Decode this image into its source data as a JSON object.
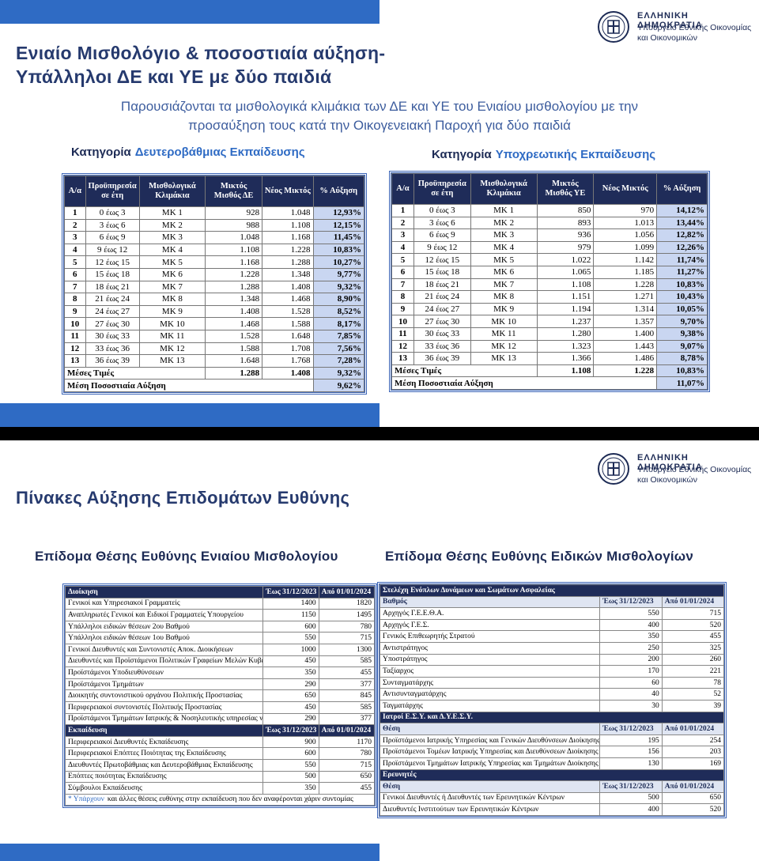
{
  "logo": {
    "line1": "ΕΛΛΗΝΙΚΗ ΔΗΜΟΚΡΑΤΙΑ",
    "line2": "Υπουργείο Εθνικής Οικονομίας",
    "line3": "και Οικονομικών"
  },
  "slide1": {
    "title": [
      "Ενιαίο Μισθολόγιο & ποσοστιαία αύξηση-",
      "Υπάλληλοι ΔΕ και ΥΕ με δύο παιδιά"
    ],
    "subtitle": [
      "Παρουσιάζονται τα μισθολογικά κλιμάκια των ΔΕ και ΥΕ του Ενιαίου μισθολογίου με την",
      "προσαύξηση τους κατά την Οικογενειακή Παροχή για δύο παιδιά"
    ],
    "tables": [
      {
        "heading": {
          "prefix": "Κατηγορία",
          "highlight": "Δευτεροβάθμιας Εκπαίδευσης"
        },
        "headers": [
          "Α/α",
          "Προϋπηρεσία σε έτη",
          "Μισθολογικά Κλιμάκια",
          "Μικτός Μισθός ΔΕ",
          "Νέος Μικτός",
          "% Αύξηση"
        ],
        "rows": [
          [
            "1",
            "0 έως 3",
            "ΜΚ 1",
            "928",
            "1.048",
            "12,93%"
          ],
          [
            "2",
            "3 έως 6",
            "ΜΚ 2",
            "988",
            "1.108",
            "12,15%"
          ],
          [
            "3",
            "6 έως 9",
            "ΜΚ 3",
            "1.048",
            "1.168",
            "11,45%"
          ],
          [
            "4",
            "9 έως 12",
            "ΜΚ 4",
            "1.108",
            "1.228",
            "10,83%"
          ],
          [
            "5",
            "12 έως 15",
            "ΜΚ 5",
            "1.168",
            "1.288",
            "10,27%"
          ],
          [
            "6",
            "15 έως 18",
            "ΜΚ 6",
            "1.228",
            "1.348",
            "9,77%"
          ],
          [
            "7",
            "18 έως 21",
            "ΜΚ 7",
            "1.288",
            "1.408",
            "9,32%"
          ],
          [
            "8",
            "21 έως 24",
            "ΜΚ 8",
            "1.348",
            "1.468",
            "8,90%"
          ],
          [
            "9",
            "24 έως 27",
            "ΜΚ 9",
            "1.408",
            "1.528",
            "8,52%"
          ],
          [
            "10",
            "27 έως 30",
            "ΜΚ 10",
            "1.468",
            "1.588",
            "8,17%"
          ],
          [
            "11",
            "30 έως 33",
            "ΜΚ 11",
            "1.528",
            "1.648",
            "7,85%"
          ],
          [
            "12",
            "33 έως 36",
            "ΜΚ 12",
            "1.588",
            "1.708",
            "7,56%"
          ],
          [
            "13",
            "36 έως 39",
            "ΜΚ 13",
            "1.648",
            "1.768",
            "7,28%"
          ]
        ],
        "average": [
          "Μέσες Τιμές",
          "1.288",
          "1.408",
          "9,32%"
        ],
        "mean": [
          "Μέση Ποσοστιαία Αύξηση",
          "9,62%"
        ]
      },
      {
        "heading": {
          "prefix": "Κατηγορία",
          "highlight": "Υποχρεωτικής Εκπαίδευσης"
        },
        "headers": [
          "Α/α",
          "Προϋπηρεσία σε έτη",
          "Μισθολογικά Κλιμάκια",
          "Μικτός Μισθός ΥΕ",
          "Νέος Μικτός",
          "% Αύξηση"
        ],
        "rows": [
          [
            "1",
            "0 έως 3",
            "ΜΚ 1",
            "850",
            "970",
            "14,12%"
          ],
          [
            "2",
            "3 έως 6",
            "ΜΚ 2",
            "893",
            "1.013",
            "13,44%"
          ],
          [
            "3",
            "6 έως 9",
            "ΜΚ 3",
            "936",
            "1.056",
            "12,82%"
          ],
          [
            "4",
            "9 έως 12",
            "ΜΚ 4",
            "979",
            "1.099",
            "12,26%"
          ],
          [
            "5",
            "12 έως 15",
            "ΜΚ 5",
            "1.022",
            "1.142",
            "11,74%"
          ],
          [
            "6",
            "15 έως 18",
            "ΜΚ 6",
            "1.065",
            "1.185",
            "11,27%"
          ],
          [
            "7",
            "18 έως 21",
            "ΜΚ 7",
            "1.108",
            "1.228",
            "10,83%"
          ],
          [
            "8",
            "21 έως 24",
            "ΜΚ 8",
            "1.151",
            "1.271",
            "10,43%"
          ],
          [
            "9",
            "24 έως 27",
            "ΜΚ 9",
            "1.194",
            "1.314",
            "10,05%"
          ],
          [
            "10",
            "27 έως 30",
            "ΜΚ 10",
            "1.237",
            "1.357",
            "9,70%"
          ],
          [
            "11",
            "30 έως 33",
            "ΜΚ 11",
            "1.280",
            "1.400",
            "9,38%"
          ],
          [
            "12",
            "33 έως 36",
            "ΜΚ 12",
            "1.323",
            "1.443",
            "9,07%"
          ],
          [
            "13",
            "36 έως 39",
            "ΜΚ 13",
            "1.366",
            "1.486",
            "8,78%"
          ]
        ],
        "average": [
          "Μέσες Τιμές",
          "1.108",
          "1.228",
          "10,83%"
        ],
        "mean": [
          "Μέση Ποσοστιαία Αύξηση",
          "11,07%"
        ]
      }
    ]
  },
  "slide2": {
    "title": "Πίνακες Αύξησης Επιδομάτων Ευθύνης",
    "tables": [
      {
        "heading": "Επίδομα Θέσης Ευθύνης Ενιαίου Μισθολογίου",
        "sections": [
          {
            "header": [
              "Διοίκηση",
              "Έως 31/12/2023",
              "Από 01/01/2024"
            ],
            "rows": [
              [
                "Γενικοί και Υπηρεσιακοί Γραμματείς",
                "1400",
                "1820"
              ],
              [
                "Αναπληρωτές Γενικοί και Ειδικοί Γραμματείς Υπουργείου",
                "1150",
                "1495"
              ],
              [
                "Υπάλληλοι ειδικών θέσεων 2ου Βαθμού",
                "600",
                "780"
              ],
              [
                "Υπάλληλοι ειδικών θέσεων 1ου Βαθμού",
                "550",
                "715"
              ],
              [
                "Γενικοί Διευθυντές και Συντονιστές Αποκ. Διοικήσεων",
                "1000",
                "1300"
              ],
              [
                "Διευθυντές και Προϊστάμενοι Πολιτικών Γραφείων Μελών Κυβέρνησης",
                "450",
                "585"
              ],
              [
                "Προϊστάμενοι Υποδιευθύνσεων",
                "350",
                "455"
              ],
              [
                "Προϊστάμενοι Τμημάτων",
                "290",
                "377"
              ],
              [
                "Διοικητής συντονιστικού οργάνου Πολιτικής Προστασίας",
                "650",
                "845"
              ],
              [
                "Περιφερειακοί συντονιστές Πολιτικής Προστασίας",
                "450",
                "585"
              ],
              [
                "Προϊστάμενοι Τμημάτων Ιατρικής & Νοσηλευτικής υπηρεσίας νοσοκομείων",
                "290",
                "377"
              ]
            ]
          },
          {
            "header": [
              "Εκπαίδευση",
              "Έως 31/12/2023",
              "Από 01/01/2024"
            ],
            "rows": [
              [
                "Περιφερειακοί Διευθυντές Εκπαίδευσης",
                "900",
                "1170"
              ],
              [
                "Περιφερειακοί Επόπτες Ποιότητας της Εκπαίδευσης",
                "600",
                "780"
              ],
              [
                "Διευθυντές Πρωτοβάθμιας και Δευτεροβάθμιας Εκπαίδευσης",
                "550",
                "715"
              ],
              [
                "Επόπτες ποιότητας Εκπαίδευσης",
                "500",
                "650"
              ],
              [
                "Σύμβουλοι Εκπαίδευσης",
                "350",
                "455"
              ]
            ]
          }
        ],
        "footnote": {
          "highlight": "* Υπάρχουν",
          "text": "και άλλες θέσεις ευθύνης στην εκπαίδευση που δεν αναφέρονται χάριν συντομίας"
        }
      },
      {
        "heading": "Επίδομα Θέσης Ευθύνης Ειδικών Μισθολογίων",
        "sections": [
          {
            "title": "Στελέχη Ενόπλων Δυνάμεων και Σωμάτων Ασφαλείας",
            "header": [
              "Βαθμός",
              "Έως 31/12/2023",
              "Από 01/01/2024"
            ],
            "rows": [
              [
                "Αρχηγός Γ.Ε.Ε.Θ.Α.",
                "550",
                "715"
              ],
              [
                "Αρχηγός Γ.Ε.Σ.",
                "400",
                "520"
              ],
              [
                "Γενικός Επιθεωρητής Στρατού",
                "350",
                "455"
              ],
              [
                "Αντιστράτηγος",
                "250",
                "325"
              ],
              [
                "Υποστράτηγος",
                "200",
                "260"
              ],
              [
                "Ταξίαρχος",
                "170",
                "221"
              ],
              [
                "Συνταγματάρχης",
                "60",
                "78"
              ],
              [
                "Αντισυνταγματάρχης",
                "40",
                "52"
              ],
              [
                "Ταγματάρχης",
                "30",
                "39"
              ]
            ]
          },
          {
            "title": "Ιατροί Ε.Σ.Υ. και Δ.Υ.Ε.Σ.Υ.",
            "header": [
              "Θέση",
              "Έως 31/12/2023",
              "Από 01/01/2024"
            ],
            "rows": [
              [
                "Προϊστάμενοι Ιατρικής Υπηρεσίας και Γενικών Διευθύνσεων Διοίκησης",
                "195",
                "254"
              ],
              [
                "Προϊστάμενοι Τομέων Ιατρικής Υπηρεσίας και Διευθύνσεων Διοίκησης",
                "156",
                "203"
              ],
              [
                "Προϊστάμενοι Τμημάτων Ιατρικής Υπηρεσίας και Τμημάτων Διοίκησης",
                "130",
                "169"
              ]
            ]
          },
          {
            "title": "Ερευνητές",
            "header": [
              "Θέση",
              "Έως 31/12/2023",
              "Από 01/01/2024"
            ],
            "rows": [
              [
                "Γενικοί Διευθυντές ή Διευθυντές των Ερευνητικών Κέντρων",
                "500",
                "650"
              ],
              [
                "Διευθυντές Ινστιτούτων των Ερευνητικών Κέντρων",
                "400",
                "520"
              ]
            ]
          }
        ]
      }
    ]
  }
}
